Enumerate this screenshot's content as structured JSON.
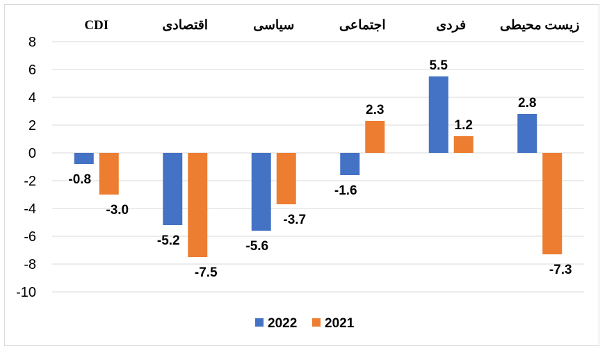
{
  "chart_data": {
    "type": "bar",
    "categories": [
      "CDI",
      "اقتصادی",
      "سیاسی",
      "اجتماعی",
      "فردی",
      "زیست محیطی"
    ],
    "series": [
      {
        "name": "2022",
        "values": [
          -0.8,
          -5.2,
          -5.6,
          -1.6,
          5.5,
          2.8
        ],
        "color": "#4472c4"
      },
      {
        "name": "2021",
        "values": [
          -3.0,
          -7.5,
          -3.7,
          2.3,
          1.2,
          -7.3
        ],
        "color": "#ed7d31"
      }
    ],
    "data_labels": [
      [
        "-0.8",
        "-5.2",
        "-5.6",
        "-1.6",
        "5.5",
        "2.8"
      ],
      [
        "-3.0",
        "-7.5",
        "-3.7",
        "2.3",
        "1.2",
        "-7.3"
      ]
    ],
    "y_ticks": [
      "8",
      "6",
      "4",
      "2",
      "0",
      "-2",
      "-4",
      "-6",
      "-8",
      "-10"
    ],
    "ylim": [
      -10,
      8
    ],
    "grid": true,
    "legend_position": "bottom",
    "category_labels_position": "top"
  }
}
